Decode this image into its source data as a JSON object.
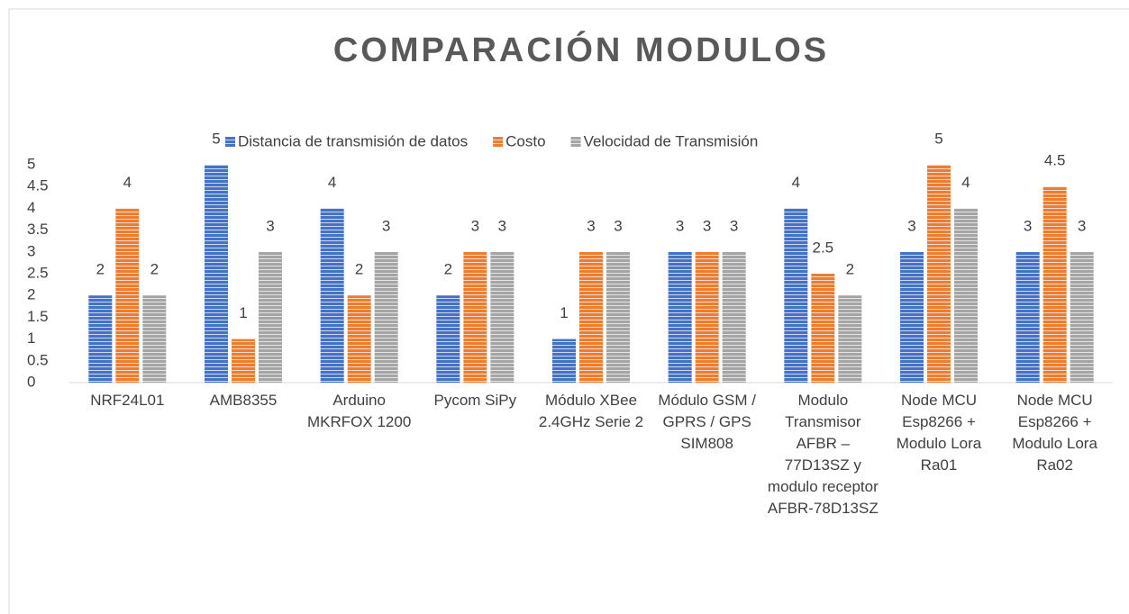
{
  "chart_data": {
    "type": "bar",
    "title": "COMPARACIÓN MODULOS",
    "categories": [
      "NRF24L01",
      "AMB8355",
      "Arduino MKRFOX 1200",
      "Pycom SiPy",
      "Módulo XBee 2.4GHz Serie 2",
      "Módulo GSM / GPRS / GPS SIM808",
      "Modulo Transmisor AFBR – 77D13SZ y modulo receptor AFBR-78D13SZ",
      "Node MCU Esp8266 + Modulo Lora Ra01",
      "Node MCU Esp8266 + Modulo Lora Ra02"
    ],
    "series": [
      {
        "name": "Distancia de transmisión de datos",
        "color": "#4472c4",
        "values": [
          2,
          5,
          4,
          2,
          1,
          3,
          4,
          3,
          3
        ]
      },
      {
        "name": "Costo",
        "color": "#ed7d31",
        "values": [
          4,
          1,
          2,
          3,
          3,
          3,
          2.5,
          5,
          4.5
        ]
      },
      {
        "name": "Velocidad de Transmisión",
        "color": "#a5a5a5",
        "values": [
          2,
          3,
          3,
          3,
          3,
          3,
          2,
          4,
          3
        ]
      }
    ],
    "ylim": [
      0,
      5
    ],
    "yticks": [
      0,
      0.5,
      1,
      1.5,
      2,
      2.5,
      3,
      3.5,
      4,
      4.5,
      5
    ],
    "grid": false,
    "legend": "top"
  }
}
